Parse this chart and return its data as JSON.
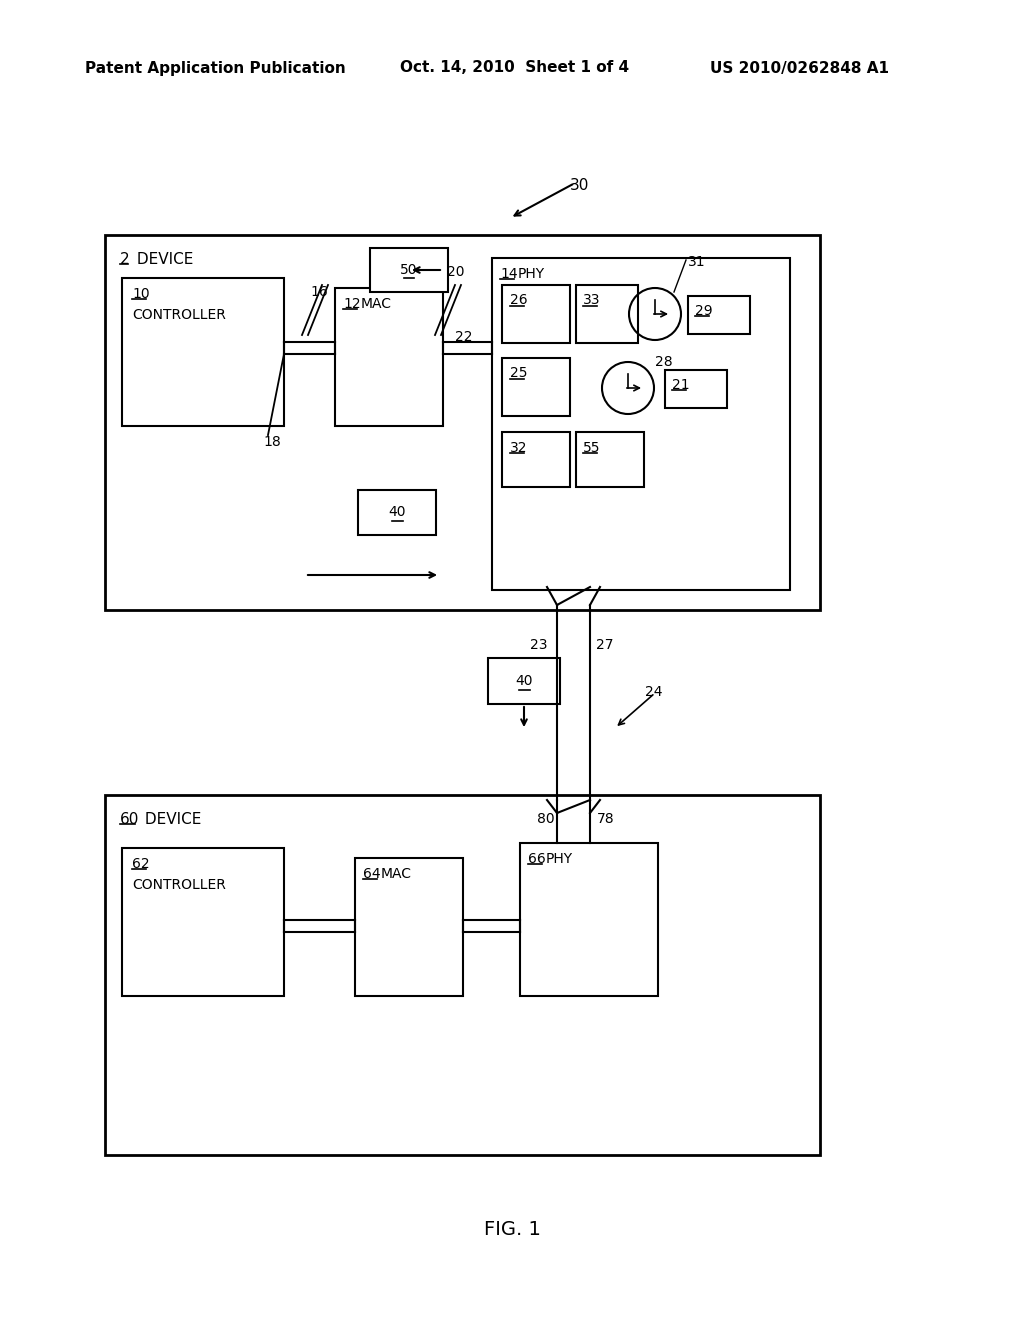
{
  "bg_color": "#ffffff",
  "header_left": "Patent Application Publication",
  "header_mid": "Oct. 14, 2010  Sheet 1 of 4",
  "header_right": "US 2010/0262848 A1",
  "fig_label": "FIG. 1"
}
